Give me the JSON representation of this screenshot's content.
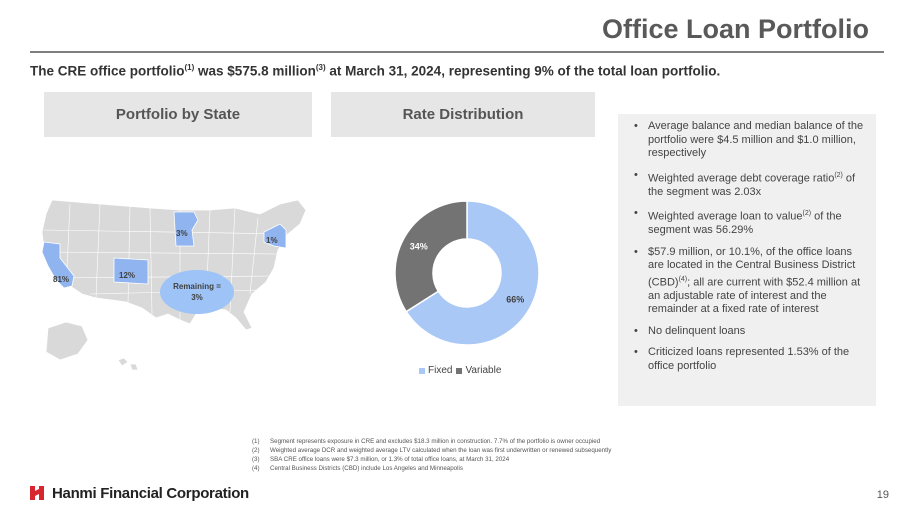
{
  "header": {
    "title": "Office Loan Portfolio"
  },
  "headline": {
    "part1": "The CRE office portfolio",
    "sup1": "(1)",
    "part2": " was $575.8 million",
    "sup2": "(3)",
    "part3": " at March 31, 2024, representing 9% of the total loan portfolio."
  },
  "panels": {
    "state_title": "Portfolio by State",
    "rate_title": "Rate Distribution"
  },
  "map": {
    "highlight_color": "#8fb4f0",
    "base_color": "#d9d9d9",
    "labels": {
      "california": "81%",
      "colorado": "12%",
      "minnesota": "3%",
      "new_york": "1%",
      "remaining_line1": "Remaining =",
      "remaining_line2": "3%"
    }
  },
  "chart_data": {
    "type": "pie",
    "title": "Rate Distribution",
    "categories": [
      "Fixed",
      "Variable"
    ],
    "values": [
      66,
      34
    ],
    "labels": [
      "66%",
      "34%"
    ],
    "colors": [
      "#a9c8f5",
      "#737373"
    ],
    "legend_position": "bottom"
  },
  "bullets": [
    {
      "text": "Average balance and median balance of the portfolio were $4.5 million and $1.0 million, respectively"
    },
    {
      "pre": "Weighted average debt coverage ratio",
      "sup": "(2)",
      "post": " of the segment was 2.03x"
    },
    {
      "pre": "Weighted average loan to value",
      "sup": "(2)",
      "post": " of the segment was 56.29%"
    },
    {
      "pre": "$57.9 million, or 10.1%, of the office loans are located in the Central Business District (CBD)",
      "sup": "(4)",
      "post": "; all are current with $52.4 million at an adjustable rate of interest and the remainder at a fixed rate of interest"
    },
    {
      "text": "No delinquent loans"
    },
    {
      "text": "Criticized loans represented 1.53% of the office portfolio"
    }
  ],
  "footnotes": [
    {
      "num": "(1)",
      "text": "Segment represents exposure in CRE and excludes $18.3 million in construction. 7.7% of the portfolio is owner occupied"
    },
    {
      "num": "(2)",
      "text": "Weighted average DCR and weighted average LTV calculated when the loan was first underwritten or renewed subsequently"
    },
    {
      "num": "(3)",
      "text": "SBA CRE office loans were $7.3 million, or 1.3% of total office loans, at March 31, 2024"
    },
    {
      "num": "(4)",
      "text": "Central Business Districts (CBD) include Los Angeles and Minneapolis"
    }
  ],
  "footer": {
    "company": "Hanmi Financial Corporation",
    "page_number": "19",
    "brand_color": "#d7262d"
  }
}
